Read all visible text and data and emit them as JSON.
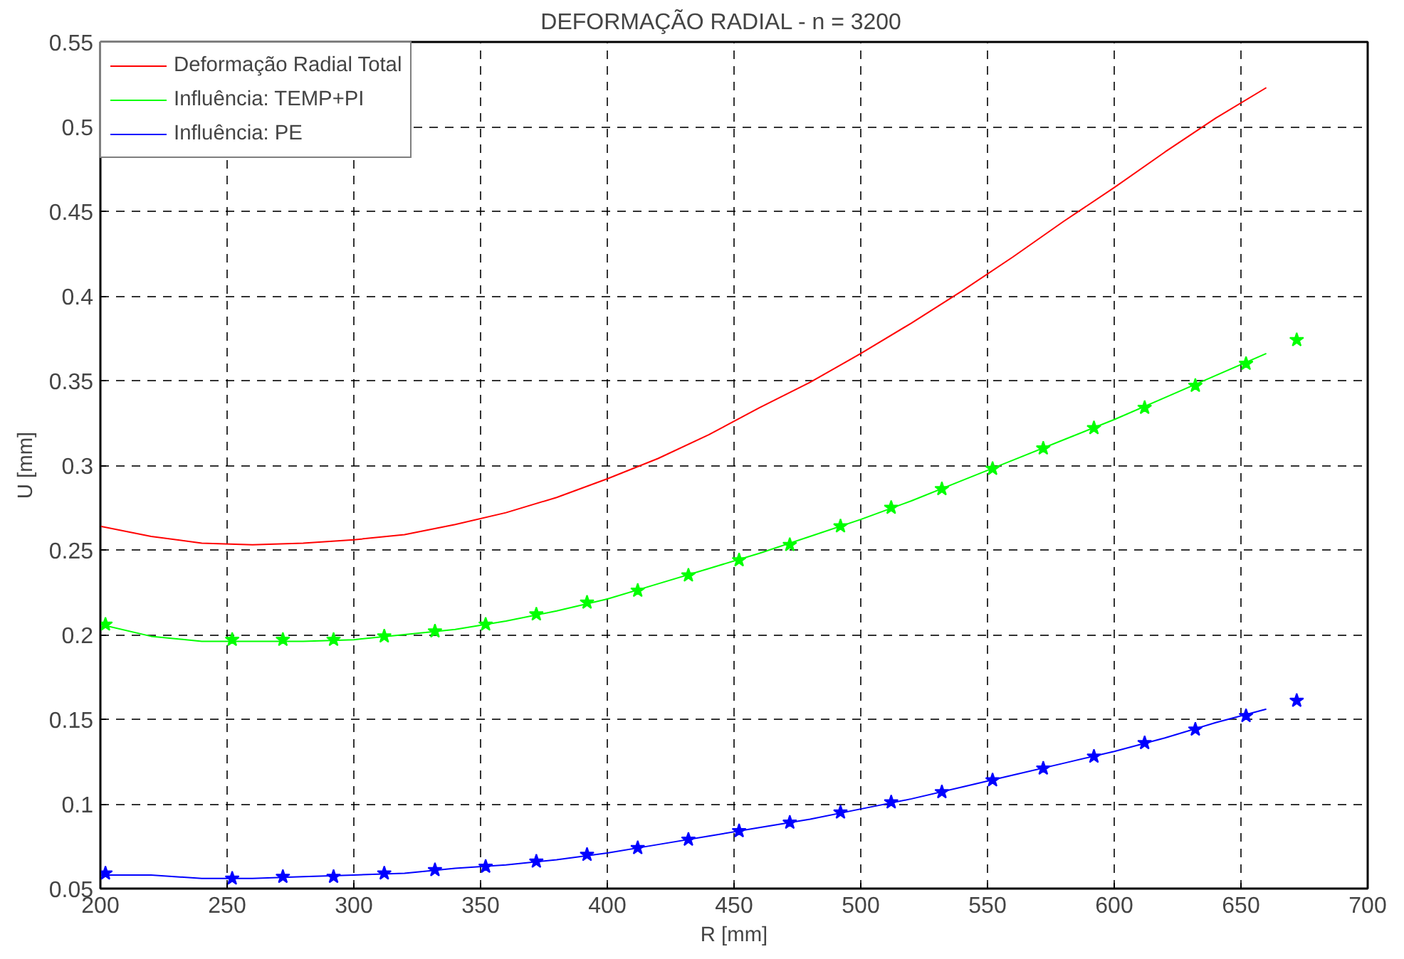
{
  "chart_data": {
    "type": "line",
    "title": "DEFORMAÇÃO RADIAL    -  n = 3200",
    "xlabel": "R [mm]",
    "ylabel": "U [mm]",
    "xlim": [
      200,
      700
    ],
    "xticks": [
      200,
      250,
      300,
      350,
      400,
      450,
      500,
      550,
      600,
      650,
      700
    ],
    "ylim": [
      0.05,
      0.55
    ],
    "yticks": [
      0.05,
      0.1,
      0.15,
      0.2,
      0.25,
      0.3,
      0.35,
      0.4,
      0.45,
      0.5,
      0.55
    ],
    "grid": true,
    "legend": "top left",
    "line_style": "solid",
    "series": [
      {
        "name": "Deformação Radial Total",
        "color": "#ff0000",
        "x": [
          200,
          220,
          240,
          260,
          280,
          300,
          320,
          340,
          360,
          380,
          400,
          420,
          440,
          460,
          480,
          500,
          520,
          540,
          560,
          580,
          600,
          620,
          640,
          660
        ],
        "values": [
          0.264,
          0.258,
          0.254,
          0.253,
          0.254,
          0.256,
          0.259,
          0.265,
          0.272,
          0.281,
          0.292,
          0.304,
          0.318,
          0.334,
          0.349,
          0.366,
          0.384,
          0.403,
          0.423,
          0.444,
          0.464,
          0.485,
          0.505,
          0.523
        ]
      },
      {
        "color": "#00ff00",
        "type": "scatter",
        "marker": "star",
        "x": [
          202,
          252,
          272,
          292,
          312,
          332,
          352,
          372,
          392,
          412,
          432,
          452,
          472,
          492,
          512,
          532,
          552,
          572,
          592,
          612,
          632,
          652,
          672
        ],
        "values": [
          0.206,
          0.197,
          0.197,
          0.197,
          0.199,
          0.202,
          0.206,
          0.212,
          0.219,
          0.226,
          0.235,
          0.244,
          0.253,
          0.264,
          0.275,
          0.286,
          0.298,
          0.31,
          0.322,
          0.334,
          0.347,
          0.36,
          0.374
        ]
      },
      {
        "name": "Influência: TEMP+PI",
        "color": "#00ff00",
        "x": [
          200,
          220,
          240,
          260,
          280,
          300,
          320,
          340,
          360,
          380,
          400,
          420,
          440,
          460,
          480,
          500,
          520,
          540,
          560,
          580,
          600,
          620,
          640,
          660
        ],
        "values": [
          0.206,
          0.199,
          0.196,
          0.196,
          0.196,
          0.197,
          0.2,
          0.203,
          0.208,
          0.214,
          0.221,
          0.23,
          0.239,
          0.248,
          0.258,
          0.268,
          0.279,
          0.291,
          0.303,
          0.315,
          0.327,
          0.34,
          0.353,
          0.366
        ]
      },
      {
        "color": "#0000ff",
        "type": "scatter",
        "marker": "star",
        "x": [
          202,
          252,
          272,
          292,
          312,
          332,
          352,
          372,
          392,
          412,
          432,
          452,
          472,
          492,
          512,
          532,
          552,
          572,
          592,
          612,
          632,
          652,
          672
        ],
        "values": [
          0.059,
          0.056,
          0.057,
          0.057,
          0.059,
          0.061,
          0.063,
          0.066,
          0.07,
          0.074,
          0.079,
          0.084,
          0.089,
          0.095,
          0.101,
          0.107,
          0.114,
          0.121,
          0.128,
          0.136,
          0.144,
          0.152,
          0.161
        ]
      },
      {
        "name": "Influência: PE",
        "color": "#0000ff",
        "x": [
          200,
          220,
          240,
          260,
          280,
          300,
          320,
          340,
          360,
          380,
          400,
          420,
          440,
          460,
          480,
          500,
          520,
          540,
          560,
          580,
          600,
          620,
          640,
          660
        ],
        "values": [
          0.058,
          0.058,
          0.056,
          0.056,
          0.057,
          0.058,
          0.059,
          0.062,
          0.064,
          0.067,
          0.071,
          0.076,
          0.081,
          0.086,
          0.091,
          0.097,
          0.103,
          0.11,
          0.117,
          0.124,
          0.131,
          0.139,
          0.148,
          0.156
        ]
      }
    ]
  }
}
